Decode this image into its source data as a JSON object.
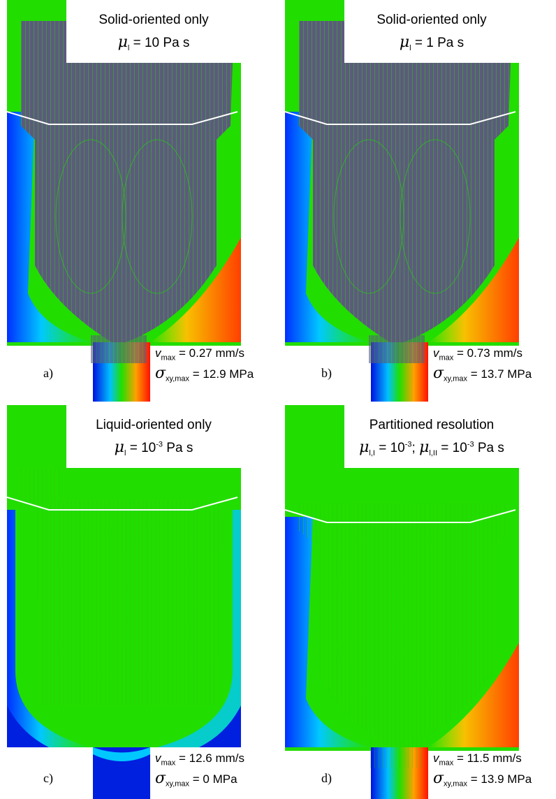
{
  "panels": [
    {
      "label": "a)",
      "title": "Solid-oriented only",
      "viscosity": [
        {
          "i": "μ"
        },
        {
          "sub": "l"
        },
        {
          "t": " = 10 Pa s"
        }
      ],
      "vmax": [
        {
          "i": "v"
        },
        {
          "sub": "max"
        },
        {
          "t": " = 0.27 mm/s"
        }
      ],
      "stress": [
        {
          "i": "σ"
        },
        {
          "sub": "xy,max"
        },
        {
          "t": " = 12.9 MPa"
        }
      ]
    },
    {
      "label": "b)",
      "title": "Solid-oriented only",
      "viscosity": [
        {
          "i": "μ"
        },
        {
          "sub": "l"
        },
        {
          "t": " = 1 Pa s"
        }
      ],
      "vmax": [
        {
          "i": "v"
        },
        {
          "sub": "max"
        },
        {
          "t": " = 0.73 mm/s"
        }
      ],
      "stress": [
        {
          "i": "σ"
        },
        {
          "sub": "xy,max"
        },
        {
          "t": " = 13.7 MPa"
        }
      ]
    },
    {
      "label": "c)",
      "title": "Liquid-oriented only",
      "viscosity": [
        {
          "i": "μ"
        },
        {
          "sub": "l"
        },
        {
          "t": " = 10"
        },
        {
          "sup": "-3"
        },
        {
          "t": " Pa s"
        }
      ],
      "vmax": [
        {
          "i": "v"
        },
        {
          "sub": "max"
        },
        {
          "t": " = 12.6 mm/s"
        }
      ],
      "stress": [
        {
          "i": "σ"
        },
        {
          "sub": "xy,max"
        },
        {
          "t": " = 0 MPa"
        }
      ]
    },
    {
      "label": "d)",
      "title": "Partitioned resolution",
      "viscosity": [
        {
          "i": "μ"
        },
        {
          "sub": "l,I"
        },
        {
          "t": " = 10"
        },
        {
          "sup": "-3"
        },
        {
          "t": "; "
        },
        {
          "i": "μ"
        },
        {
          "sub": "l,II"
        },
        {
          "t": " = 10"
        },
        {
          "sup": "-3"
        },
        {
          "t": " Pa s"
        }
      ],
      "vmax": [
        {
          "i": "v"
        },
        {
          "sub": "max"
        },
        {
          "t": " = 11.5 mm/s"
        }
      ],
      "stress": [
        {
          "i": "σ"
        },
        {
          "sub": "xy,max"
        },
        {
          "t": " = 13.9 MPa"
        }
      ]
    }
  ]
}
